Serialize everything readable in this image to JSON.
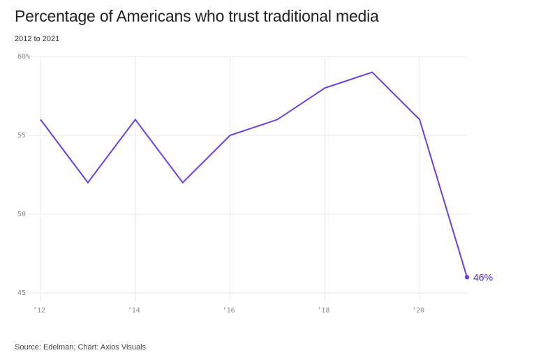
{
  "header": {
    "title": "Percentage of Americans who trust traditional media",
    "subtitle": "2012 to 2021"
  },
  "footer": {
    "source": "Source: Edelman; Chart: Axios Visuals"
  },
  "colors": {
    "line": "#6b3fe0",
    "grid": "#e8e8e8",
    "tick_text": "#888888",
    "end_label": "#4b1fd0"
  },
  "chart_data": {
    "type": "line",
    "title": "Percentage of Americans who trust traditional media",
    "subtitle": "2012 to 2021",
    "xlabel": "",
    "ylabel": "",
    "x": [
      2012,
      2013,
      2014,
      2015,
      2016,
      2017,
      2018,
      2019,
      2020,
      2021
    ],
    "series": [
      {
        "values": [
          56,
          52,
          56,
          52,
          55,
          56,
          58,
          59,
          56,
          46
        ]
      }
    ],
    "xlim": [
      2012,
      2021
    ],
    "ylim": [
      45,
      60
    ],
    "x_ticks": [
      2012,
      2014,
      2016,
      2018,
      2020
    ],
    "x_tick_labels": [
      "’12",
      "’14",
      "’16",
      "’18",
      "’20"
    ],
    "y_ticks": [
      45,
      50,
      55,
      60
    ],
    "y_tick_labels": [
      "45",
      "50",
      "55",
      "60%"
    ],
    "end_label": "46%",
    "grid": true,
    "legend": "none"
  }
}
